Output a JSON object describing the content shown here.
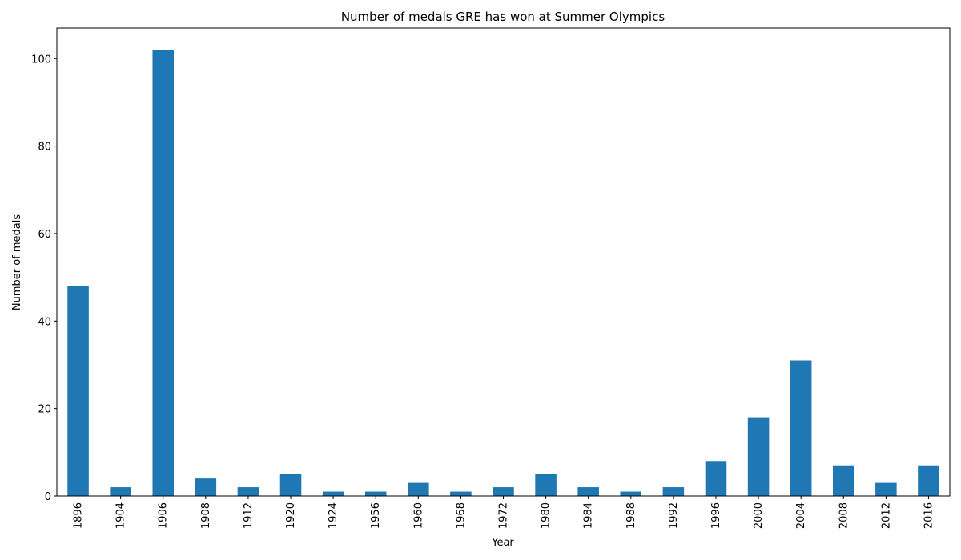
{
  "chart_data": {
    "type": "bar",
    "title": "Number of medals GRE has won at Summer Olympics",
    "xlabel": "Year",
    "ylabel": "Number of medals",
    "categories": [
      "1896",
      "1904",
      "1906",
      "1908",
      "1912",
      "1920",
      "1924",
      "1956",
      "1960",
      "1968",
      "1972",
      "1980",
      "1984",
      "1988",
      "1992",
      "1996",
      "2000",
      "2004",
      "2008",
      "2012",
      "2016"
    ],
    "values": [
      48,
      2,
      102,
      4,
      2,
      5,
      1,
      1,
      3,
      1,
      2,
      5,
      2,
      1,
      2,
      8,
      18,
      31,
      7,
      3,
      7
    ],
    "ylim": [
      0,
      107
    ],
    "yticks": [
      0,
      20,
      40,
      60,
      80,
      100
    ],
    "grid": false,
    "legend": "none",
    "bar_color": "#1f77b4",
    "x_tick_rotation": "vertical"
  }
}
